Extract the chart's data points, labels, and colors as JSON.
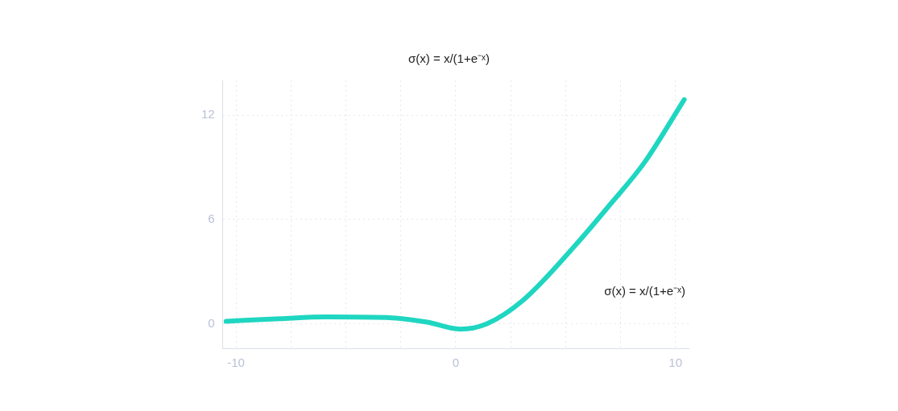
{
  "chart_data": {
    "type": "line",
    "title": "σ(x) = x/(1+e⁻ˣ)",
    "annotations": [
      "σ(x) = x/(1+e⁻ˣ)"
    ],
    "series": [
      {
        "color": "#1fd6c1",
        "x": [
          -10.45,
          -8,
          -5.9,
          -2.9,
          -1.3,
          0.2,
          1.4,
          3.1,
          5.5,
          7.05,
          8.6,
          10.4
        ],
        "values": [
          0.15,
          0.3,
          0.4,
          0.35,
          0.1,
          -0.3,
          0,
          1.4,
          4.6,
          6.9,
          9.3,
          12.9
        ]
      }
    ],
    "xlim": [
      -10.6,
      10.6
    ],
    "ylim": [
      -1.4,
      14
    ],
    "xticks": [
      -10,
      {
        "value": -7.5,
        "label": null
      },
      {
        "value": -5,
        "label": null
      },
      {
        "value": -2.5,
        "label": null
      },
      0,
      {
        "value": 2.5,
        "label": null
      },
      {
        "value": 5,
        "label": null
      },
      {
        "value": 7.5,
        "label": null
      },
      10
    ],
    "yticks": [
      0,
      6,
      12
    ],
    "grid": true,
    "marker": "none",
    "line_style": "solid",
    "legend": false
  }
}
